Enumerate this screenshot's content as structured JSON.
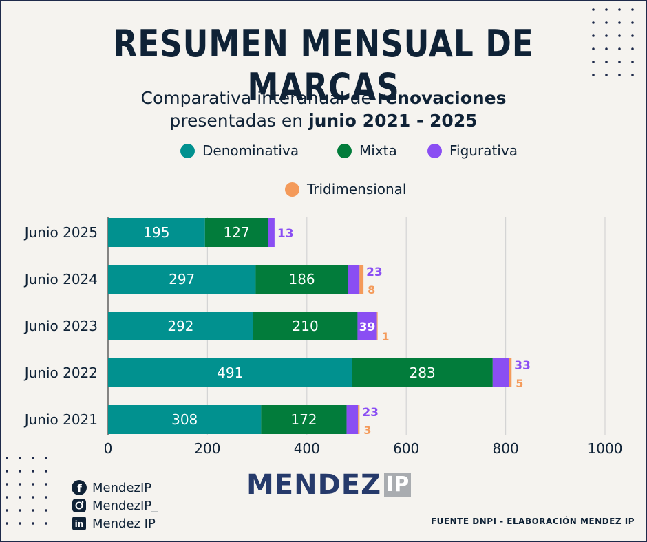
{
  "title": "RESUMEN MENSUAL DE MARCAS",
  "subtitle": {
    "line1_text": "Comparativa interanual de ",
    "line1_bold": "renovaciones",
    "line2_text": "presentadas en ",
    "line2_bold": "junio 2021 - 2025"
  },
  "colors": {
    "denominativa": "#01918f",
    "mixta": "#027c3b",
    "figurativa": "#8a4ef3",
    "tridimensional": "#f49a5a",
    "grid": "#d4d4d4",
    "text": "#0f2236"
  },
  "chart_data": {
    "type": "bar",
    "orientation": "horizontal",
    "stacked": true,
    "categories": [
      "Junio 2025",
      "Junio 2024",
      "Junio 2023",
      "Junio 2022",
      "Junio 2021"
    ],
    "series": [
      {
        "name": "Denominativa",
        "values": [
          195,
          297,
          292,
          491,
          308
        ]
      },
      {
        "name": "Mixta",
        "values": [
          127,
          186,
          210,
          283,
          172
        ]
      },
      {
        "name": "Figurativa",
        "values": [
          13,
          23,
          39,
          33,
          23
        ]
      },
      {
        "name": "Tridimensional",
        "values": [
          0,
          8,
          1,
          5,
          3
        ]
      }
    ],
    "xlim": [
      0,
      1000
    ],
    "xticks": [
      0,
      200,
      400,
      600,
      800,
      1000
    ],
    "grid": true,
    "legend": "top-center"
  },
  "social": {
    "facebook": "MendezIP",
    "instagram": "MendezIP_",
    "linkedin": "Mendez IP"
  },
  "logo": {
    "main": "MENDEZ",
    "suffix": "IP"
  },
  "source": "FUENTE DNPI - ELABORACIÓN MENDEZ IP"
}
